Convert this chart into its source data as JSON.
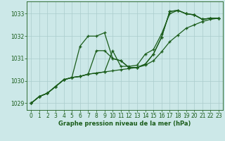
{
  "background_color": "#cce8e8",
  "grid_color": "#aacccc",
  "line_color": "#1a5c1a",
  "line_width": 0.9,
  "marker": "+",
  "marker_size": 3.5,
  "marker_ew": 0.9,
  "xlabel": "Graphe pression niveau de la mer (hPa)",
  "xlabel_fontsize": 6.0,
  "tick_fontsize": 5.5,
  "xlim": [
    -0.5,
    23.5
  ],
  "ylim": [
    1028.7,
    1033.55
  ],
  "yticks": [
    1029,
    1030,
    1031,
    1032,
    1033
  ],
  "xticks": [
    0,
    1,
    2,
    3,
    4,
    5,
    6,
    7,
    8,
    9,
    10,
    11,
    12,
    13,
    14,
    15,
    16,
    17,
    18,
    19,
    20,
    21,
    22,
    23
  ],
  "series": [
    [
      1029.0,
      1029.3,
      1029.45,
      1029.75,
      1030.05,
      1030.15,
      1031.55,
      1032.0,
      1032.0,
      1032.15,
      1031.0,
      1030.9,
      1030.6,
      1030.6,
      1030.75,
      1031.2,
      1031.95,
      1033.1,
      1033.15,
      1033.0,
      1032.95,
      1032.75,
      1032.8,
      1032.8
    ],
    [
      1029.0,
      1029.3,
      1029.45,
      1029.75,
      1030.05,
      1030.15,
      1030.2,
      1030.3,
      1031.35,
      1031.35,
      1031.0,
      1030.9,
      1030.6,
      1030.6,
      1030.75,
      1031.2,
      1031.95,
      1033.1,
      1033.15,
      1033.0,
      1032.95,
      1032.75,
      1032.8,
      1032.8
    ],
    [
      1029.0,
      1029.3,
      1029.45,
      1029.75,
      1030.05,
      1030.15,
      1030.2,
      1030.3,
      1030.35,
      1030.4,
      1031.35,
      1030.65,
      1030.65,
      1030.7,
      1031.2,
      1031.4,
      1032.1,
      1033.0,
      1033.15,
      1033.0,
      1032.95,
      1032.75,
      1032.8,
      1032.8
    ],
    [
      1029.0,
      1029.3,
      1029.45,
      1029.75,
      1030.05,
      1030.15,
      1030.2,
      1030.3,
      1030.35,
      1030.4,
      1030.45,
      1030.5,
      1030.55,
      1030.6,
      1030.7,
      1030.9,
      1031.3,
      1031.75,
      1032.05,
      1032.35,
      1032.5,
      1032.65,
      1032.75,
      1032.8
    ]
  ]
}
